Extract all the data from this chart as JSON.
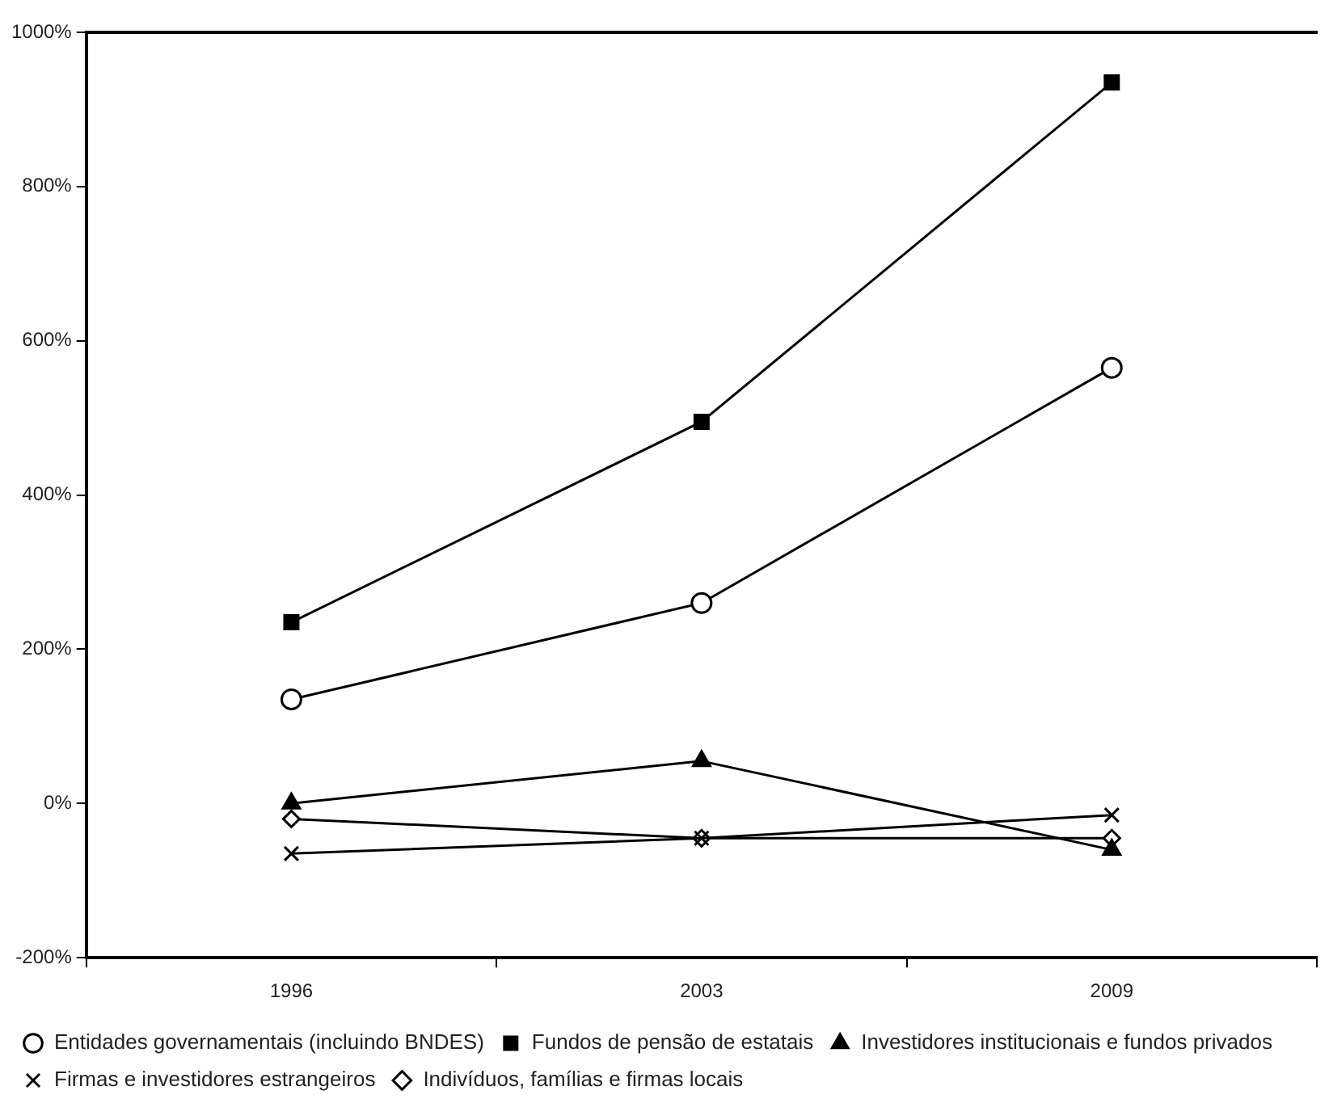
{
  "chart_data": {
    "type": "line",
    "categories": [
      "1996",
      "2003",
      "2009"
    ],
    "series": [
      {
        "name": "Entidades governamentais (incluindo BNDES)",
        "color": "#000000",
        "marker": "circle",
        "values": [
          135,
          260,
          565
        ]
      },
      {
        "name": "Fundos de pensão de estatais",
        "color": "#000000",
        "marker": "square",
        "values": [
          235,
          495,
          935
        ]
      },
      {
        "name": "Investidores institucionais e fundos privados",
        "color": "#000000",
        "marker": "triangle",
        "values": [
          0,
          55,
          -60
        ]
      },
      {
        "name": "Firmas e investidores estrangeiros",
        "color": "#000000",
        "marker": "cross",
        "values": [
          -65,
          -45,
          -15
        ]
      },
      {
        "name": "Indivíduos, famílias e firmas locais",
        "color": "#000000",
        "marker": "diamond",
        "values": [
          -20,
          -45,
          -45
        ]
      }
    ],
    "ylim": [
      -200,
      1000
    ],
    "yticks": [
      {
        "value": -200,
        "label": "-200%"
      },
      {
        "value": 0,
        "label": "0%"
      },
      {
        "value": 200,
        "label": "200%"
      },
      {
        "value": 400,
        "label": "400%"
      },
      {
        "value": 600,
        "label": "600%"
      },
      {
        "value": 800,
        "label": "800%"
      },
      {
        "value": 1000,
        "label": "1000%"
      }
    ],
    "grid": false,
    "legend": "bottom",
    "line_style": "solid"
  }
}
